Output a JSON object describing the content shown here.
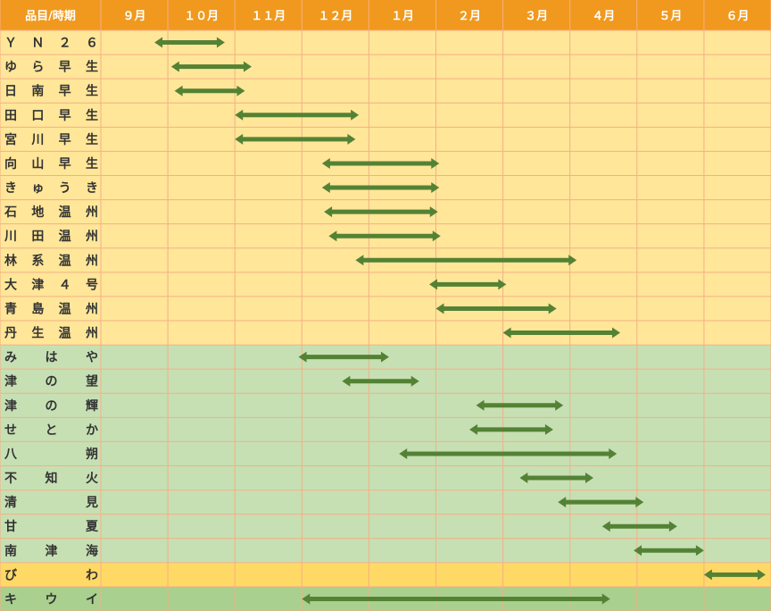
{
  "header": {
    "corner_label": "品目/時期"
  },
  "colors": {
    "header_bg": "#f0991e",
    "citrus_row_bg": "#ffe699",
    "late_row_bg": "#c6e0b4",
    "biwa_row_bg": "#ffd966",
    "kiwi_row_bg": "#a9d08e",
    "grid_line": "#f4b084",
    "arrow": "#548235"
  },
  "chart_data": {
    "type": "gantt",
    "months": [
      "９月",
      "１０月",
      "１１月",
      "１２月",
      "１月",
      "２月",
      "３月",
      "４月",
      "５月",
      "６月"
    ],
    "items": [
      {
        "label": "ＹＮ２６",
        "group": "citrus",
        "start": 0.8,
        "end": 1.85
      },
      {
        "label": "ゆら早生",
        "group": "citrus",
        "start": 1.05,
        "end": 2.25
      },
      {
        "label": "日南早生",
        "group": "citrus",
        "start": 1.1,
        "end": 2.15
      },
      {
        "label": "田口早生",
        "group": "citrus",
        "start": 2.0,
        "end": 3.85
      },
      {
        "label": "宮川早生",
        "group": "citrus",
        "start": 2.0,
        "end": 3.8
      },
      {
        "label": "向山早生",
        "group": "citrus",
        "start": 3.3,
        "end": 5.05
      },
      {
        "label": "きゅうき",
        "group": "citrus",
        "start": 3.3,
        "end": 5.05
      },
      {
        "label": "石地温州",
        "group": "citrus",
        "start": 3.33,
        "end": 5.03
      },
      {
        "label": "川田温州",
        "group": "citrus",
        "start": 3.4,
        "end": 5.07
      },
      {
        "label": "林系温州",
        "group": "citrus",
        "start": 3.8,
        "end": 7.1
      },
      {
        "label": "大津４号",
        "group": "citrus",
        "start": 4.9,
        "end": 6.05
      },
      {
        "label": "青島温州",
        "group": "citrus",
        "start": 5.0,
        "end": 6.8
      },
      {
        "label": "丹生温州",
        "group": "citrus",
        "start": 6.0,
        "end": 7.75
      },
      {
        "label": "みはや",
        "group": "late",
        "start": 2.95,
        "end": 4.3
      },
      {
        "label": "津の望",
        "group": "late",
        "start": 3.6,
        "end": 4.75
      },
      {
        "label": "津の輝",
        "group": "late",
        "start": 5.6,
        "end": 6.9
      },
      {
        "label": "せとか",
        "group": "late",
        "start": 5.5,
        "end": 6.75
      },
      {
        "label": "八朔",
        "group": "late",
        "start": 4.45,
        "end": 7.7
      },
      {
        "label": "不知火",
        "group": "late",
        "start": 6.25,
        "end": 7.35
      },
      {
        "label": "清見",
        "group": "late",
        "start": 6.82,
        "end": 8.1
      },
      {
        "label": "甘夏",
        "group": "late",
        "start": 7.48,
        "end": 8.6
      },
      {
        "label": "南津海",
        "group": "late",
        "start": 7.95,
        "end": 9.0
      },
      {
        "label": "びわ",
        "group": "biwa",
        "start": 9.0,
        "end": 9.92
      },
      {
        "label": "キウイ",
        "group": "kiwi",
        "start": 3.0,
        "end": 7.6
      }
    ]
  }
}
